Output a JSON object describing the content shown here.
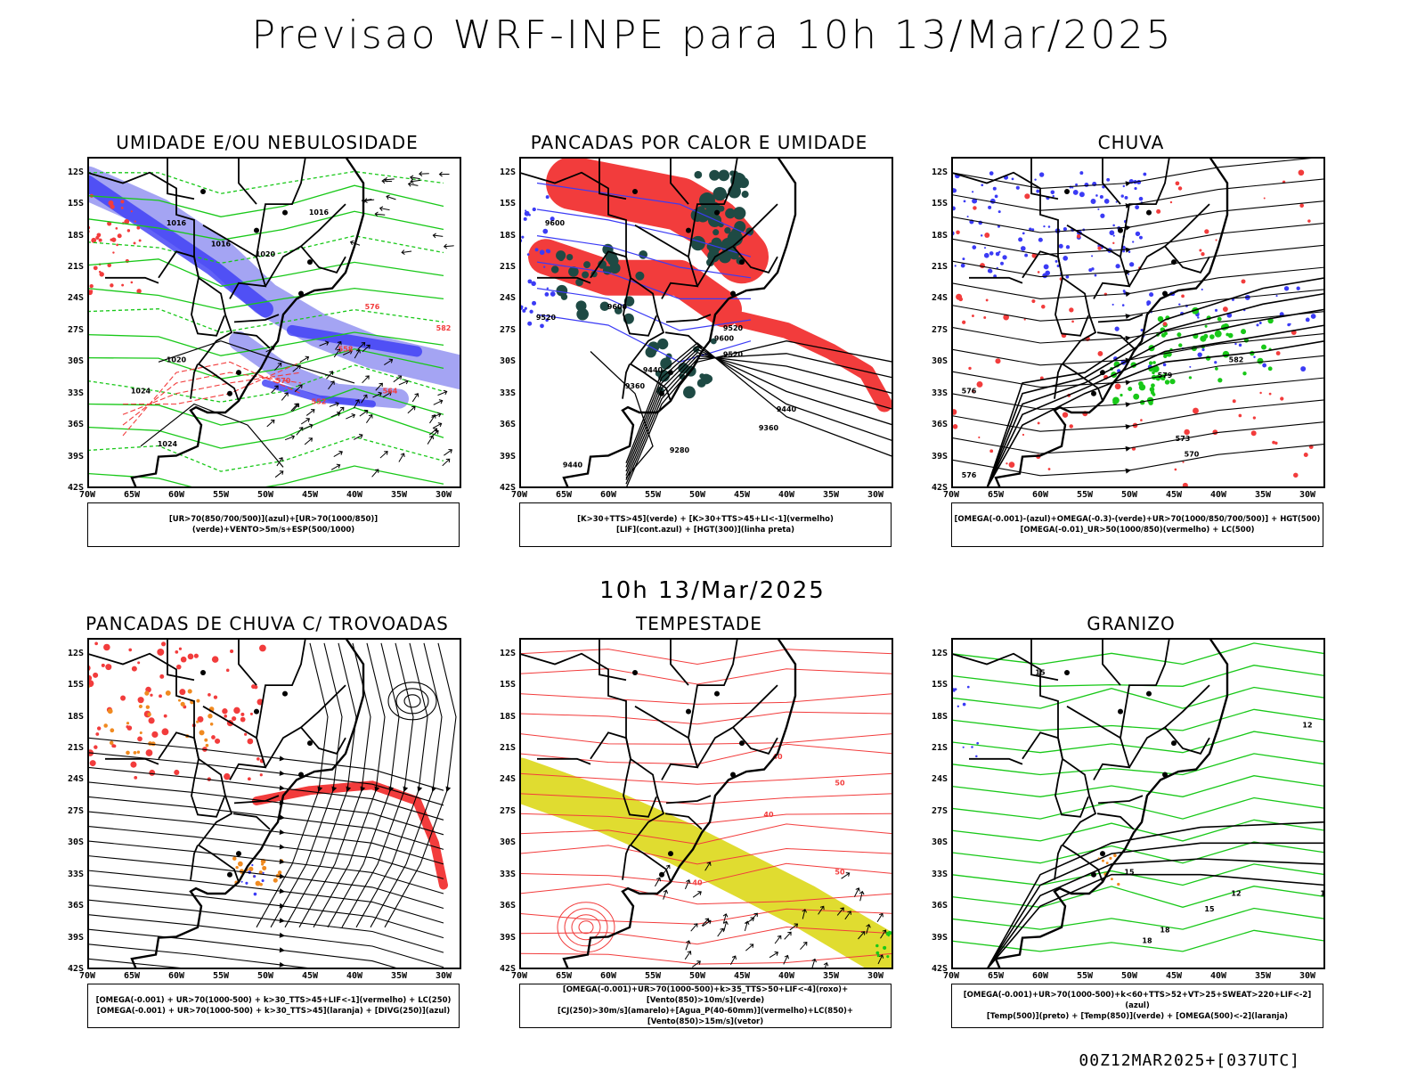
{
  "header": {
    "title": "Previsao WRF-INPE  para 10h 13/Mar/2025"
  },
  "subtitle": "10h 13/Mar/2025",
  "footer": "00Z12MAR2025+[037UTC]",
  "axes": {
    "lat_labels": [
      "12S",
      "15S",
      "18S",
      "21S",
      "24S",
      "27S",
      "30S",
      "33S",
      "36S",
      "39S",
      "42S"
    ],
    "lon_labels": [
      "70W",
      "65W",
      "60W",
      "55W",
      "50W",
      "45W",
      "40W",
      "35W",
      "30W"
    ]
  },
  "colors": {
    "blue": "#3b3bf5",
    "lightblue": "#9a9af2",
    "green": "#18c818",
    "red": "#f23c3c",
    "darkgreen": "#1e4a44",
    "orange": "#f08a20",
    "yellow": "#e0dc30"
  },
  "panels": [
    {
      "id": "umidade",
      "title": "UMIDADE E/OU NEBULOSIDADE",
      "legend": [
        "[UR>70(850/700/500)](azul)+[UR>70(1000/850)](verde)+VENTO>5m/s+ESP(500/1000)"
      ],
      "contour_labels": [
        "1016",
        "1016",
        "1016",
        "1020",
        "1020",
        "1024",
        "1024",
        "570",
        "576",
        "564",
        "558",
        "552",
        "582"
      ]
    },
    {
      "id": "pancadas-calor",
      "title": "PANCADAS POR CALOR E UMIDADE",
      "legend": [
        "[K>30+TTS>45](verde) + [K>30+TTS>45+LI<-1](vermelho)",
        "[LIF](cont.azul) + [HGT(300)](linha preta)"
      ],
      "contour_labels": [
        "9600",
        "9520",
        "9600",
        "9520",
        "9440",
        "9360",
        "9440",
        "9360",
        "9280",
        "9440",
        "9520",
        "9600"
      ]
    },
    {
      "id": "chuva",
      "title": "CHUVA",
      "legend": [
        "[OMEGA(-0.001)-(azul)+OMEGA(-0.3)-(verde)+UR>70(1000/850/700/500)] + HGT(500)",
        "[OMEGA(-0.01)_UR>50(1000/850)(vermelho) + LC(500)"
      ],
      "contour_labels": [
        "582",
        "579",
        "576",
        "573",
        "570",
        "576"
      ]
    },
    {
      "id": "trovoadas",
      "title": "PANCADAS DE CHUVA C/ TROVOADAS",
      "legend": [
        "[OMEGA(-0.001) + UR>70(1000-500) + k>30_TTS>45+LIF<-1](vermelho) + LC(250)",
        "[OMEGA(-0.001) + UR>70(1000-500) + k>30_TTS>45](laranja) + [DIVG(250)](azul)"
      ],
      "contour_labels": []
    },
    {
      "id": "tempestade",
      "title": "TEMPESTADE",
      "legend": [
        "[OMEGA(-0.001)+UR>70(1000-500)+k>35_TTS>50+LIF<-4](roxo)+[Vento(850)>10m/s](verde)",
        "[CJ(250)>30m/s](amarelo)+[Agua_P(40-60mm)](vermelho)+LC(850)+[Vento(850)>15m/s](vetor)"
      ],
      "contour_labels": [
        "40",
        "50",
        "40",
        "50",
        "40"
      ]
    },
    {
      "id": "granizo",
      "title": "GRANIZO",
      "legend": [
        "[OMEGA(-0.001)+UR>70(1000-500)+k<60+TTS>52+VT>25+SWEAT>220+LIF<-2](azul)",
        "[Temp(500)](preto) + [Temp(850)](verde) + [OMEGA(500)<-2](laranja)"
      ],
      "contour_labels": [
        "15",
        "18",
        "12",
        "15",
        "18",
        "15",
        "12",
        "15"
      ]
    }
  ]
}
